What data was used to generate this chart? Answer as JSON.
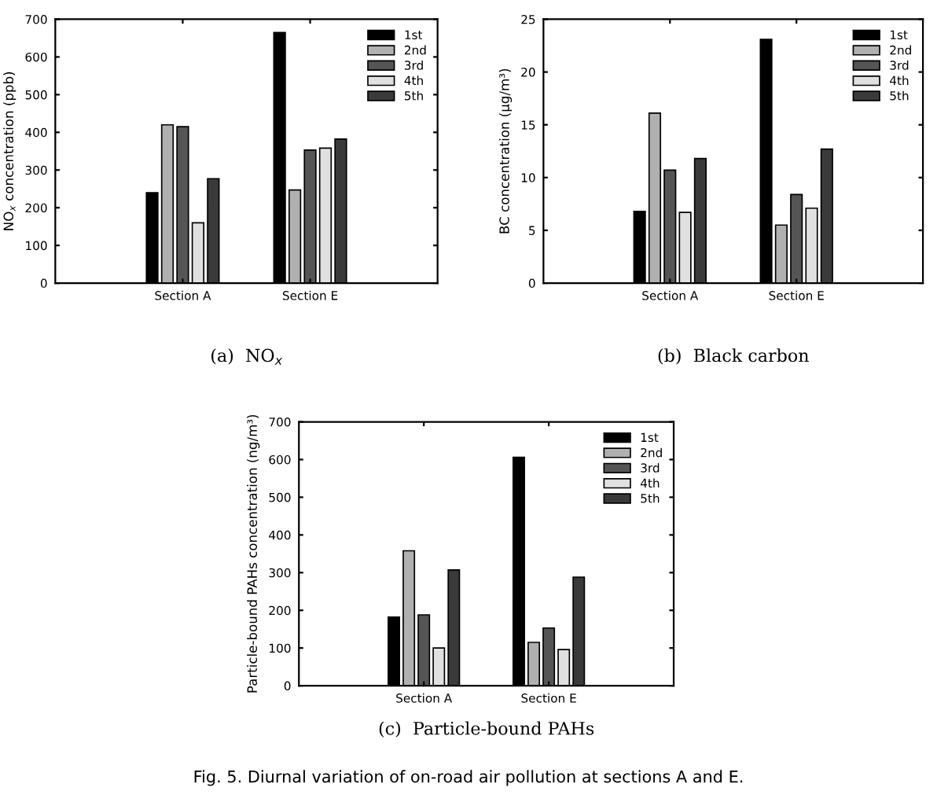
{
  "chart_data": [
    {
      "type": "bar",
      "title": "(a)  NO$_{x}$",
      "ylabel": "NO$_{x}$ concentration (ppb)",
      "categories": [
        "Section A",
        "Section E"
      ],
      "ylim": [
        0,
        700
      ],
      "yticks": [
        0,
        100,
        200,
        300,
        400,
        500,
        600,
        700
      ],
      "grid": false,
      "legend": "top right",
      "series": [
        {
          "name": "1st",
          "color": "#000000",
          "values": [
            240,
            665
          ]
        },
        {
          "name": "2nd",
          "color": "#b0b0b0",
          "values": [
            420,
            247
          ]
        },
        {
          "name": "3rd",
          "color": "#555555",
          "values": [
            415,
            353
          ]
        },
        {
          "name": "4th",
          "color": "#e0e0e0",
          "values": [
            160,
            358
          ]
        },
        {
          "name": "5th",
          "color": "#3a3a3a",
          "values": [
            277,
            382
          ]
        }
      ]
    },
    {
      "type": "bar",
      "title": "(b)  Black carbon",
      "ylabel": "BC concentration (μg/m³)",
      "categories": [
        "Section A",
        "Section E"
      ],
      "ylim": [
        0,
        25
      ],
      "yticks": [
        0,
        5,
        10,
        15,
        20,
        25
      ],
      "grid": false,
      "legend": "top right",
      "series": [
        {
          "name": "1st",
          "color": "#000000",
          "values": [
            6.8,
            23.1
          ]
        },
        {
          "name": "2nd",
          "color": "#b0b0b0",
          "values": [
            16.1,
            5.5
          ]
        },
        {
          "name": "3rd",
          "color": "#555555",
          "values": [
            10.7,
            8.4
          ]
        },
        {
          "name": "4th",
          "color": "#e0e0e0",
          "values": [
            6.7,
            7.1
          ]
        },
        {
          "name": "5th",
          "color": "#3a3a3a",
          "values": [
            11.8,
            12.7
          ]
        }
      ]
    },
    {
      "type": "bar",
      "title": "(c)  Particle-bound PAHs",
      "ylabel": "Particle-bound PAHs concentration (ng/m³)",
      "categories": [
        "Section A",
        "Section E"
      ],
      "ylim": [
        0,
        700
      ],
      "yticks": [
        0,
        100,
        200,
        300,
        400,
        500,
        600,
        700
      ],
      "grid": false,
      "legend": "top right",
      "annotations": [
        "Fig. 5. Diurnal variation of on-road air pollution at sections A and E."
      ],
      "series": [
        {
          "name": "1st",
          "color": "#000000",
          "values": [
            182,
            606
          ]
        },
        {
          "name": "2nd",
          "color": "#b0b0b0",
          "values": [
            358,
            115
          ]
        },
        {
          "name": "3rd",
          "color": "#555555",
          "values": [
            188,
            153
          ]
        },
        {
          "name": "4th",
          "color": "#e0e0e0",
          "values": [
            100,
            96
          ]
        },
        {
          "name": "5th",
          "color": "#3a3a3a",
          "values": [
            307,
            288
          ]
        }
      ]
    }
  ]
}
